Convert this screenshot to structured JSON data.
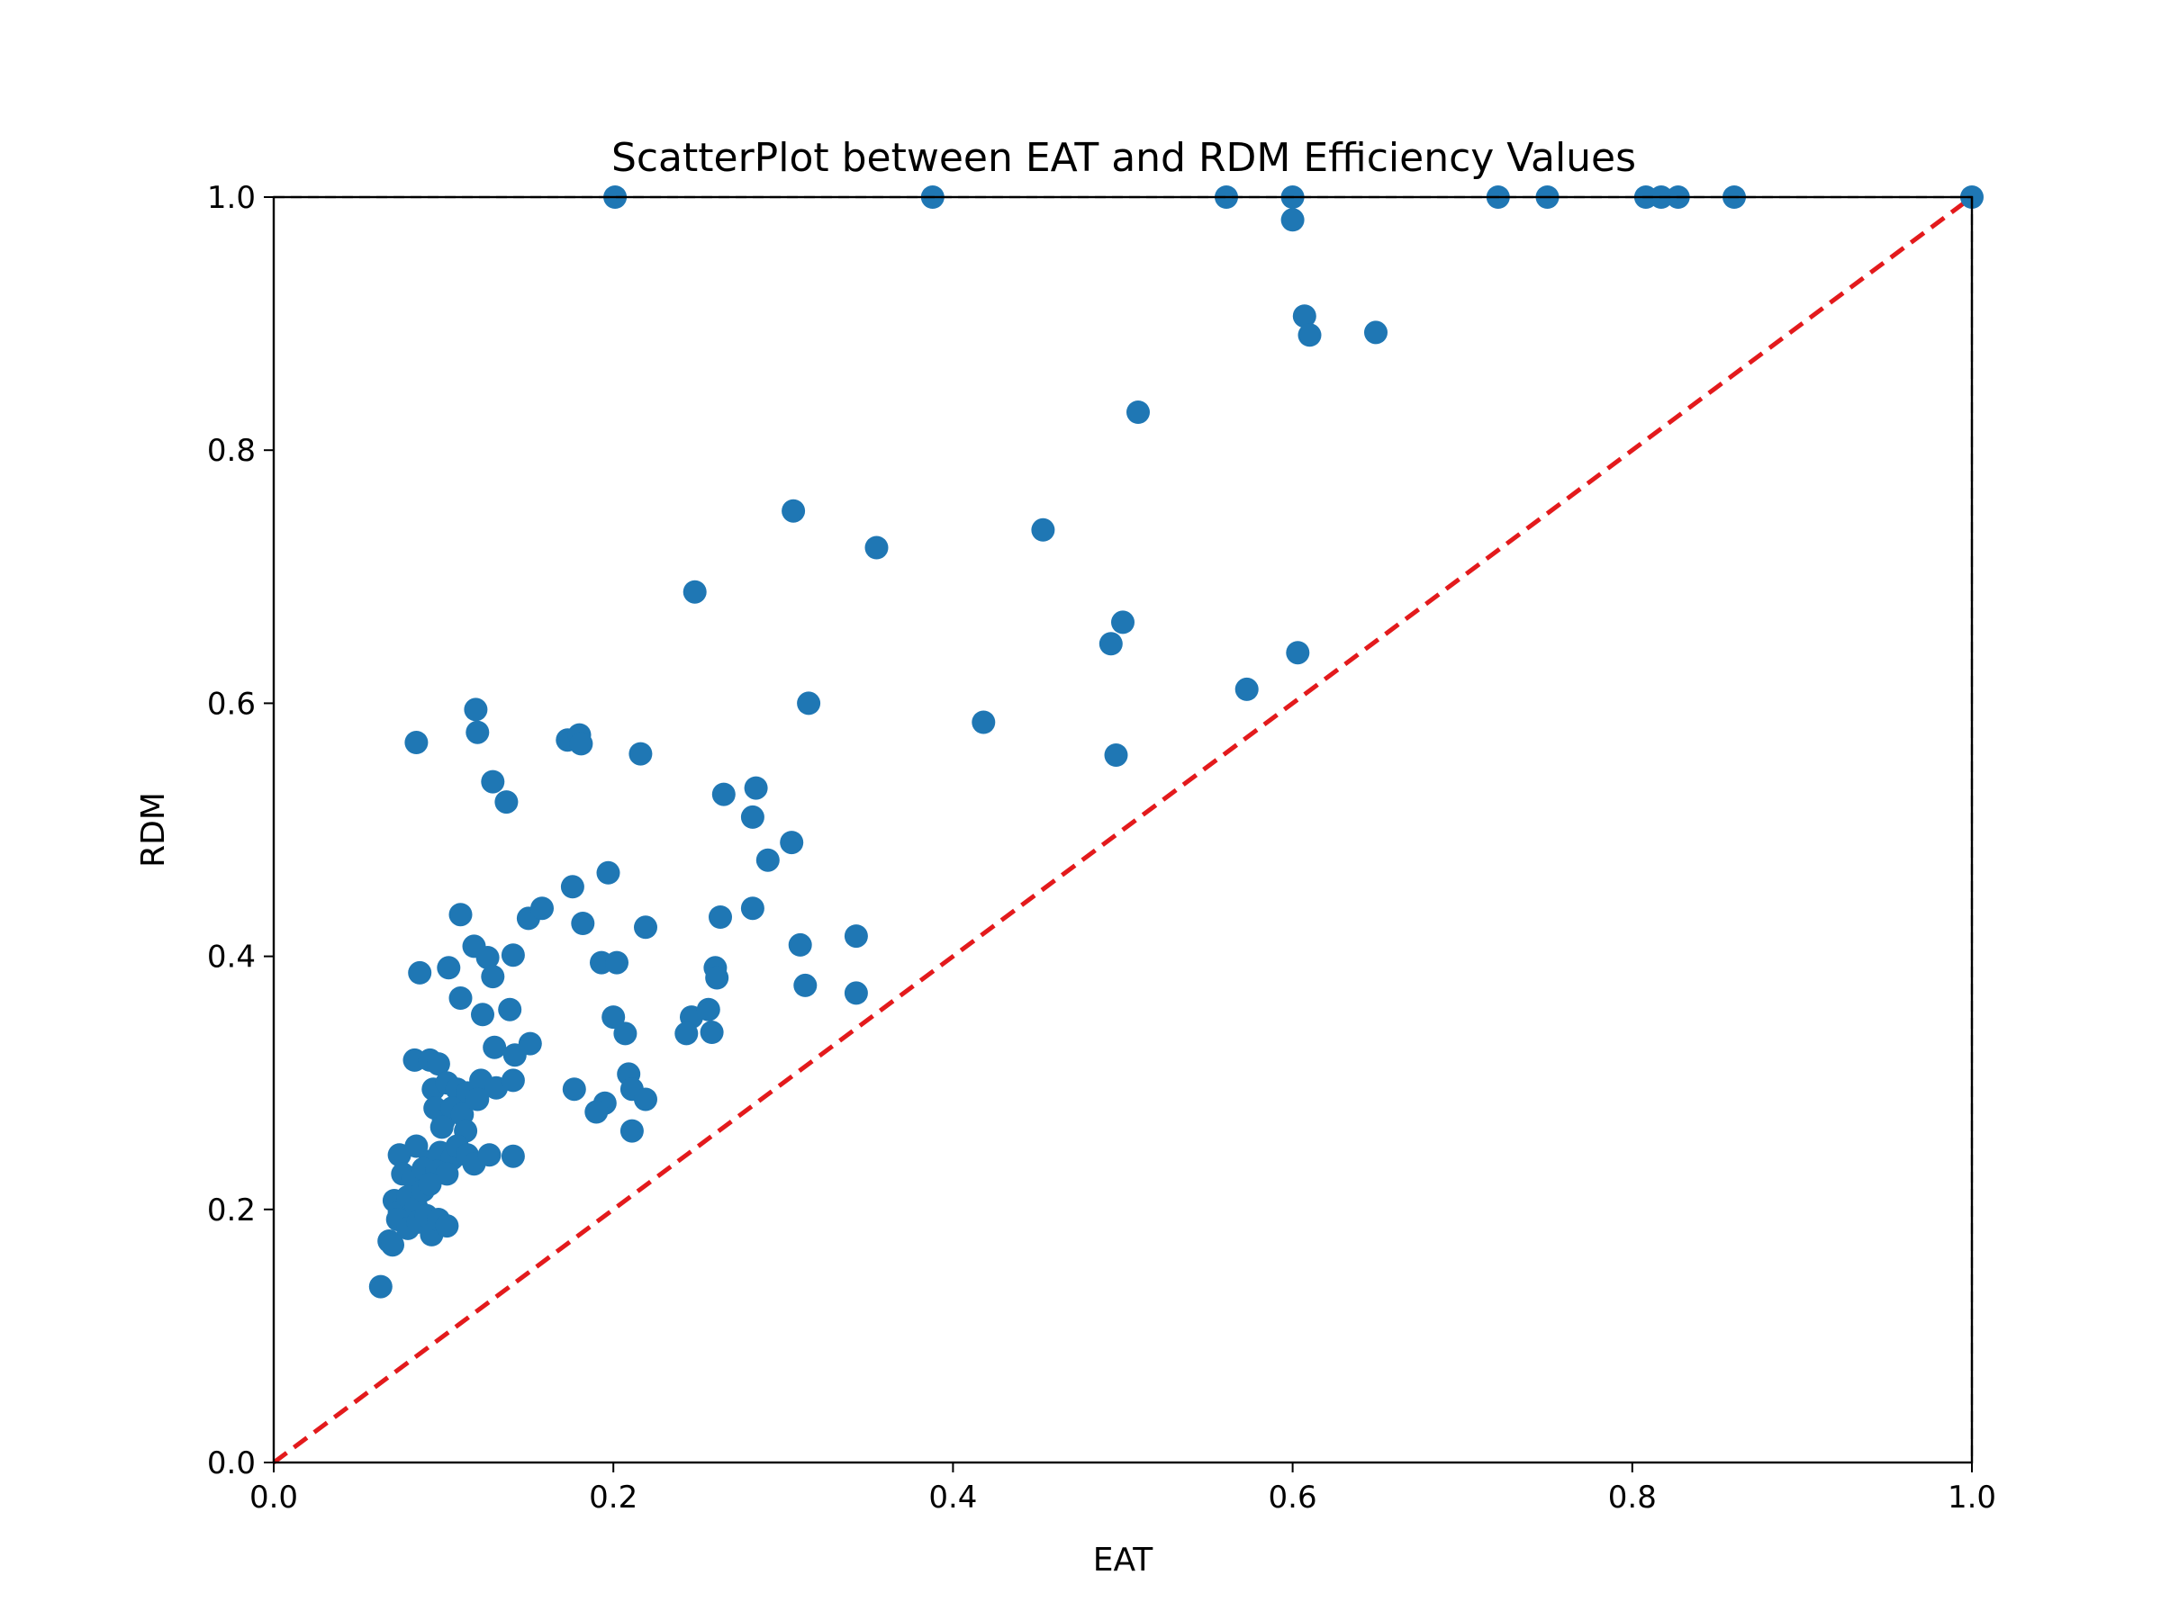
{
  "chart_data": {
    "type": "scatter",
    "title": "ScatterPlot between EAT and RDM Efficiency Values",
    "xlabel": "EAT",
    "ylabel": "RDM",
    "xlim": [
      0.0,
      1.0
    ],
    "ylim": [
      0.0,
      1.0
    ],
    "xticks": [
      "0.0",
      "0.2",
      "0.4",
      "0.6",
      "0.8",
      "1.0"
    ],
    "yticks": [
      "0.0",
      "0.2",
      "0.4",
      "0.6",
      "0.8",
      "1.0"
    ],
    "grid": false,
    "reference_line": {
      "x": [
        0,
        1
      ],
      "y": [
        0,
        1
      ],
      "style": "dashed",
      "color": "#e31a1c"
    },
    "colors": {
      "points": "#1f77b4",
      "reference": "#e31a1c",
      "axes": "#000000"
    },
    "series": [
      {
        "points": [
          [
            0.201,
            1.0
          ],
          [
            0.388,
            1.0
          ],
          [
            0.561,
            1.0
          ],
          [
            0.6,
            1.0
          ],
          [
            0.721,
            1.0
          ],
          [
            0.75,
            1.0
          ],
          [
            0.808,
            1.0
          ],
          [
            0.817,
            1.0
          ],
          [
            0.827,
            1.0
          ],
          [
            0.86,
            1.0
          ],
          [
            1.0,
            1.0
          ],
          [
            0.6,
            0.982
          ],
          [
            0.607,
            0.906
          ],
          [
            0.61,
            0.891
          ],
          [
            0.649,
            0.893
          ],
          [
            0.509,
            0.83
          ],
          [
            0.306,
            0.752
          ],
          [
            0.355,
            0.723
          ],
          [
            0.453,
            0.737
          ],
          [
            0.248,
            0.688
          ],
          [
            0.5,
            0.664
          ],
          [
            0.493,
            0.647
          ],
          [
            0.603,
            0.64
          ],
          [
            0.573,
            0.611
          ],
          [
            0.119,
            0.595
          ],
          [
            0.315,
            0.6
          ],
          [
            0.418,
            0.585
          ],
          [
            0.084,
            0.569
          ],
          [
            0.12,
            0.577
          ],
          [
            0.173,
            0.571
          ],
          [
            0.18,
            0.575
          ],
          [
            0.181,
            0.568
          ],
          [
            0.216,
            0.56
          ],
          [
            0.496,
            0.559
          ],
          [
            0.129,
            0.538
          ],
          [
            0.137,
            0.522
          ],
          [
            0.265,
            0.528
          ],
          [
            0.284,
            0.533
          ],
          [
            0.282,
            0.51
          ],
          [
            0.291,
            0.476
          ],
          [
            0.305,
            0.49
          ],
          [
            0.176,
            0.455
          ],
          [
            0.197,
            0.466
          ],
          [
            0.11,
            0.433
          ],
          [
            0.15,
            0.43
          ],
          [
            0.158,
            0.438
          ],
          [
            0.118,
            0.408
          ],
          [
            0.126,
            0.399
          ],
          [
            0.141,
            0.401
          ],
          [
            0.182,
            0.426
          ],
          [
            0.219,
            0.423
          ],
          [
            0.263,
            0.431
          ],
          [
            0.282,
            0.438
          ],
          [
            0.31,
            0.409
          ],
          [
            0.343,
            0.416
          ],
          [
            0.086,
            0.387
          ],
          [
            0.103,
            0.391
          ],
          [
            0.129,
            0.384
          ],
          [
            0.193,
            0.395
          ],
          [
            0.202,
            0.395
          ],
          [
            0.26,
            0.391
          ],
          [
            0.261,
            0.383
          ],
          [
            0.313,
            0.377
          ],
          [
            0.343,
            0.371
          ],
          [
            0.11,
            0.367
          ],
          [
            0.123,
            0.354
          ],
          [
            0.139,
            0.358
          ],
          [
            0.2,
            0.352
          ],
          [
            0.207,
            0.339
          ],
          [
            0.246,
            0.352
          ],
          [
            0.256,
            0.358
          ],
          [
            0.243,
            0.339
          ],
          [
            0.258,
            0.34
          ],
          [
            0.083,
            0.318
          ],
          [
            0.092,
            0.318
          ],
          [
            0.097,
            0.315
          ],
          [
            0.13,
            0.328
          ],
          [
            0.142,
            0.322
          ],
          [
            0.151,
            0.331
          ],
          [
            0.094,
            0.295
          ],
          [
            0.102,
            0.3
          ],
          [
            0.108,
            0.295
          ],
          [
            0.114,
            0.292
          ],
          [
            0.122,
            0.302
          ],
          [
            0.131,
            0.296
          ],
          [
            0.141,
            0.302
          ],
          [
            0.177,
            0.295
          ],
          [
            0.195,
            0.284
          ],
          [
            0.19,
            0.277
          ],
          [
            0.209,
            0.307
          ],
          [
            0.211,
            0.295
          ],
          [
            0.219,
            0.287
          ],
          [
            0.095,
            0.28
          ],
          [
            0.1,
            0.27
          ],
          [
            0.105,
            0.28
          ],
          [
            0.111,
            0.275
          ],
          [
            0.12,
            0.287
          ],
          [
            0.099,
            0.265
          ],
          [
            0.113,
            0.262
          ],
          [
            0.211,
            0.262
          ],
          [
            0.074,
            0.243
          ],
          [
            0.084,
            0.25
          ],
          [
            0.092,
            0.238
          ],
          [
            0.098,
            0.245
          ],
          [
            0.105,
            0.24
          ],
          [
            0.108,
            0.25
          ],
          [
            0.114,
            0.243
          ],
          [
            0.118,
            0.236
          ],
          [
            0.127,
            0.243
          ],
          [
            0.141,
            0.242
          ],
          [
            0.076,
            0.228
          ],
          [
            0.082,
            0.225
          ],
          [
            0.088,
            0.232
          ],
          [
            0.096,
            0.23
          ],
          [
            0.102,
            0.228
          ],
          [
            0.071,
            0.207
          ],
          [
            0.074,
            0.198
          ],
          [
            0.079,
            0.21
          ],
          [
            0.084,
            0.202
          ],
          [
            0.088,
            0.215
          ],
          [
            0.092,
            0.22
          ],
          [
            0.073,
            0.192
          ],
          [
            0.079,
            0.185
          ],
          [
            0.085,
            0.19
          ],
          [
            0.09,
            0.195
          ],
          [
            0.093,
            0.18
          ],
          [
            0.097,
            0.192
          ],
          [
            0.102,
            0.187
          ],
          [
            0.068,
            0.175
          ],
          [
            0.07,
            0.172
          ],
          [
            0.063,
            0.139
          ]
        ]
      }
    ]
  }
}
